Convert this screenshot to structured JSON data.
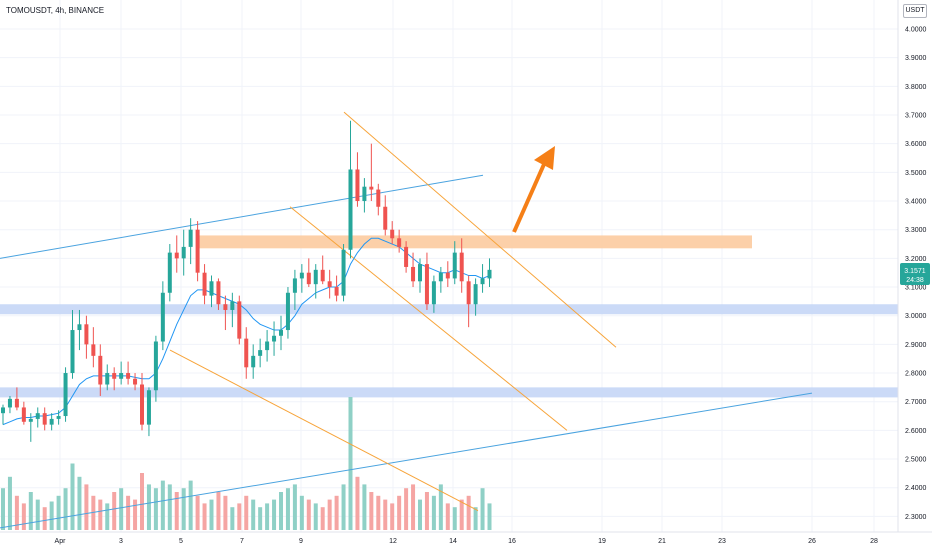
{
  "header": {
    "symbol_line": "TOMOUSDT, 4h, BINANCE",
    "currency": "USDT"
  },
  "price_badge": {
    "price": "3.1571",
    "countdown": "24:38",
    "color": "#26a69a"
  },
  "colors": {
    "up": "#26a69a",
    "down": "#ef5350",
    "vol_up": "#8fd0c6",
    "vol_down": "#f5a5a3",
    "ma": "#2196f3",
    "trend_blue": "#4aa3df",
    "trend_orange": "#f7a43a",
    "zone_orange": "#fbc89a",
    "zone_blue": "#c2d4f6",
    "arrow": "#f57f17"
  },
  "chart_data": {
    "type": "candlestick",
    "yticks": [
      "4.0000",
      "3.9000",
      "3.8000",
      "3.7000",
      "3.6000",
      "3.5000",
      "3.4000",
      "3.3000",
      "3.2000",
      "3.1000",
      "3.0000",
      "2.9000",
      "2.8000",
      "2.7000",
      "2.6000",
      "2.5000",
      "2.4000",
      "2.3000"
    ],
    "ylim": [
      2.25,
      4.05
    ],
    "xticks": [
      "Apr",
      "3",
      "5",
      "7",
      "9",
      "12",
      "14",
      "16",
      "19",
      "21",
      "23",
      "26",
      "28"
    ],
    "candles": [
      [
        2.66,
        2.69,
        2.62,
        2.68
      ],
      [
        2.68,
        2.72,
        2.66,
        2.71
      ],
      [
        2.71,
        2.75,
        2.67,
        2.68
      ],
      [
        2.68,
        2.7,
        2.62,
        2.63
      ],
      [
        2.63,
        2.66,
        2.56,
        2.64
      ],
      [
        2.64,
        2.68,
        2.61,
        2.66
      ],
      [
        2.66,
        2.68,
        2.6,
        2.62
      ],
      [
        2.62,
        2.66,
        2.6,
        2.64
      ],
      [
        2.64,
        2.67,
        2.62,
        2.65
      ],
      [
        2.65,
        2.82,
        2.63,
        2.8
      ],
      [
        2.8,
        3.02,
        2.78,
        2.95
      ],
      [
        2.95,
        3.02,
        2.88,
        2.97
      ],
      [
        2.97,
        3.0,
        2.85,
        2.9
      ],
      [
        2.9,
        2.96,
        2.82,
        2.86
      ],
      [
        2.86,
        2.9,
        2.72,
        2.76
      ],
      [
        2.76,
        2.83,
        2.74,
        2.8
      ],
      [
        2.8,
        2.82,
        2.74,
        2.78
      ],
      [
        2.78,
        2.84,
        2.76,
        2.8
      ],
      [
        2.8,
        2.84,
        2.76,
        2.78
      ],
      [
        2.78,
        2.8,
        2.74,
        2.76
      ],
      [
        2.76,
        2.8,
        2.6,
        2.62
      ],
      [
        2.62,
        2.75,
        2.58,
        2.74
      ],
      [
        2.74,
        2.93,
        2.7,
        2.91
      ],
      [
        2.91,
        3.12,
        2.88,
        3.08
      ],
      [
        3.08,
        3.25,
        3.05,
        3.22
      ],
      [
        3.22,
        3.28,
        3.15,
        3.2
      ],
      [
        3.2,
        3.3,
        3.14,
        3.24
      ],
      [
        3.24,
        3.34,
        3.18,
        3.3
      ],
      [
        3.3,
        3.33,
        3.12,
        3.15
      ],
      [
        3.15,
        3.18,
        3.04,
        3.07
      ],
      [
        3.07,
        3.14,
        3.03,
        3.12
      ],
      [
        3.12,
        3.13,
        3.02,
        3.04
      ],
      [
        3.04,
        3.07,
        2.95,
        3.02
      ],
      [
        3.02,
        3.08,
        2.96,
        3.05
      ],
      [
        3.05,
        3.07,
        2.9,
        2.92
      ],
      [
        2.92,
        2.96,
        2.78,
        2.82
      ],
      [
        2.82,
        2.9,
        2.78,
        2.86
      ],
      [
        2.86,
        2.92,
        2.82,
        2.88
      ],
      [
        2.88,
        2.95,
        2.84,
        2.91
      ],
      [
        2.91,
        2.98,
        2.86,
        2.93
      ],
      [
        2.93,
        3.0,
        2.88,
        2.95
      ],
      [
        2.95,
        3.1,
        2.92,
        3.08
      ],
      [
        3.08,
        3.16,
        3.02,
        3.13
      ],
      [
        3.13,
        3.18,
        3.08,
        3.15
      ],
      [
        3.15,
        3.2,
        3.1,
        3.11
      ],
      [
        3.11,
        3.18,
        3.06,
        3.16
      ],
      [
        3.16,
        3.21,
        3.11,
        3.12
      ],
      [
        3.12,
        3.16,
        3.06,
        3.1
      ],
      [
        3.1,
        3.14,
        3.05,
        3.07
      ],
      [
        3.07,
        3.25,
        3.05,
        3.23
      ],
      [
        3.23,
        3.68,
        3.2,
        3.51
      ],
      [
        3.51,
        3.57,
        3.38,
        3.4
      ],
      [
        3.4,
        3.48,
        3.36,
        3.45
      ],
      [
        3.45,
        3.6,
        3.4,
        3.44
      ],
      [
        3.44,
        3.46,
        3.35,
        3.38
      ],
      [
        3.38,
        3.42,
        3.28,
        3.3
      ],
      [
        3.3,
        3.33,
        3.25,
        3.27
      ],
      [
        3.27,
        3.3,
        3.22,
        3.24
      ],
      [
        3.24,
        3.26,
        3.15,
        3.17
      ],
      [
        3.17,
        3.22,
        3.1,
        3.12
      ],
      [
        3.12,
        3.2,
        3.08,
        3.18
      ],
      [
        3.18,
        3.22,
        3.02,
        3.04
      ],
      [
        3.04,
        3.14,
        3.01,
        3.12
      ],
      [
        3.12,
        3.17,
        3.08,
        3.15
      ],
      [
        3.15,
        3.19,
        3.1,
        3.13
      ],
      [
        3.13,
        3.26,
        3.11,
        3.22
      ],
      [
        3.22,
        3.27,
        3.08,
        3.12
      ],
      [
        3.12,
        3.14,
        2.96,
        3.04
      ],
      [
        3.04,
        3.13,
        3.0,
        3.11
      ],
      [
        3.11,
        3.18,
        3.08,
        3.13
      ],
      [
        3.13,
        3.2,
        3.1,
        3.16
      ]
    ],
    "volume": [
      22,
      28,
      18,
      14,
      20,
      16,
      12,
      15,
      18,
      22,
      35,
      28,
      24,
      18,
      16,
      14,
      20,
      22,
      18,
      16,
      30,
      24,
      22,
      26,
      24,
      20,
      22,
      26,
      18,
      14,
      16,
      20,
      18,
      12,
      14,
      18,
      16,
      12,
      14,
      16,
      20,
      22,
      24,
      18,
      16,
      14,
      12,
      16,
      18,
      24,
      70,
      28,
      24,
      20,
      18,
      16,
      14,
      18,
      22,
      24,
      16,
      20,
      18,
      24,
      14,
      12,
      16,
      18,
      12,
      22,
      14
    ],
    "ma": [
      2.62,
      2.63,
      2.64,
      2.645,
      2.645,
      2.65,
      2.65,
      2.655,
      2.66,
      2.68,
      2.72,
      2.76,
      2.78,
      2.79,
      2.79,
      2.79,
      2.79,
      2.79,
      2.79,
      2.785,
      2.78,
      2.78,
      2.8,
      2.85,
      2.91,
      2.97,
      3.02,
      3.07,
      3.09,
      3.09,
      3.08,
      3.07,
      3.06,
      3.05,
      3.04,
      3.02,
      2.99,
      2.97,
      2.96,
      2.95,
      2.95,
      2.97,
      3.0,
      3.04,
      3.06,
      3.08,
      3.09,
      3.1,
      3.1,
      3.12,
      3.18,
      3.22,
      3.25,
      3.27,
      3.27,
      3.26,
      3.25,
      3.24,
      3.22,
      3.2,
      3.18,
      3.17,
      3.16,
      3.15,
      3.15,
      3.16,
      3.15,
      3.14,
      3.14,
      3.13,
      3.14
    ],
    "zones": [
      {
        "name": "resistance",
        "top": 3.28,
        "bottom": 3.235,
        "color": "zone_orange"
      },
      {
        "name": "support-1",
        "top": 3.04,
        "bottom": 3.005,
        "color": "zone_blue"
      },
      {
        "name": "support-2",
        "top": 2.75,
        "bottom": 2.715,
        "color": "zone_blue"
      }
    ],
    "lines": [
      {
        "name": "upper-blue-trendline",
        "color": "trend_blue",
        "p1": [
          0,
          3.2
        ],
        "p2": [
          483,
          3.49
        ]
      },
      {
        "name": "lower-blue-trendline",
        "color": "trend_blue",
        "p1": [
          0,
          2.26
        ],
        "p2": [
          812,
          2.73
        ]
      },
      {
        "name": "channel-top-orange",
        "color": "trend_orange",
        "p1": [
          344,
          3.71
        ],
        "p2": [
          616,
          2.89
        ]
      },
      {
        "name": "channel-mid-orange",
        "color": "trend_orange",
        "p1": [
          290,
          3.38
        ],
        "p2": [
          567,
          2.6
        ]
      },
      {
        "name": "lower-orange-line",
        "color": "trend_orange",
        "p1": [
          170,
          2.88
        ],
        "p2": [
          478,
          2.32
        ]
      }
    ]
  }
}
